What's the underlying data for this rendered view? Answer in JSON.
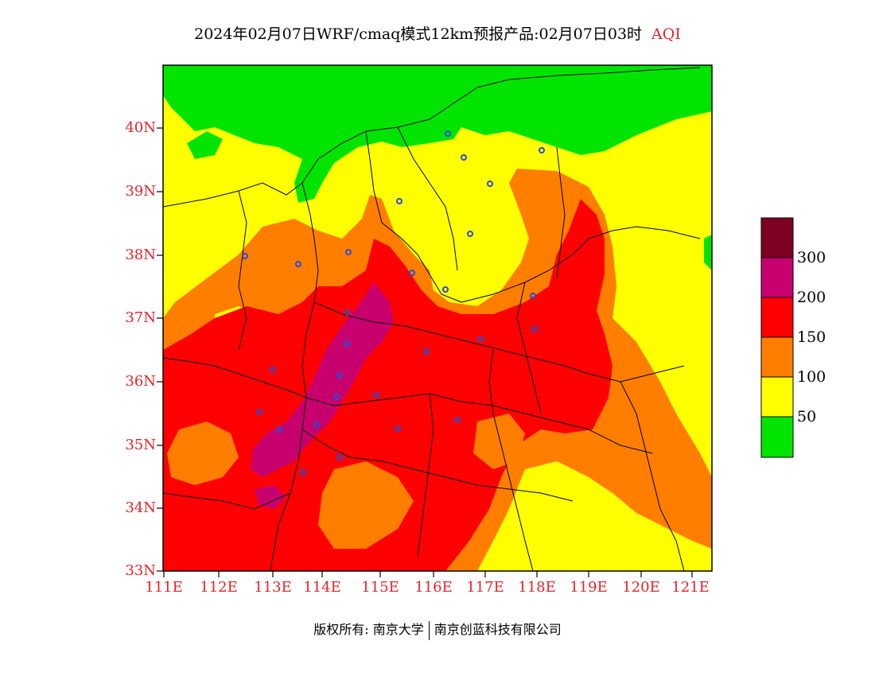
{
  "title": {
    "main": "2024年02月07日WRF/cmaq模式12km预报产品:02月07日03时",
    "variable": "AQI"
  },
  "map": {
    "lat_ticks": [
      "40N",
      "39N",
      "38N",
      "37N",
      "36N",
      "35N",
      "34N",
      "33N"
    ],
    "lon_ticks": [
      "111E",
      "112E",
      "113E",
      "114E",
      "115E",
      "116E",
      "117E",
      "118E",
      "119E",
      "120E",
      "121E"
    ],
    "extent": {
      "lon": [
        111,
        121.3
      ],
      "lat": [
        33,
        41
      ]
    }
  },
  "legend": {
    "levels": [
      "300",
      "200",
      "150",
      "100",
      "50"
    ],
    "colors": {
      "0-50": "#00e400",
      "50-100": "#ffff00",
      "100-150": "#ff7e00",
      "150-200": "#ff0000",
      "200-300": "#c8006e",
      "300+": "#7e0023"
    }
  },
  "footer": {
    "copyright": "版权所有: 南京大学",
    "company": "南京创蓝科技有限公司"
  }
}
